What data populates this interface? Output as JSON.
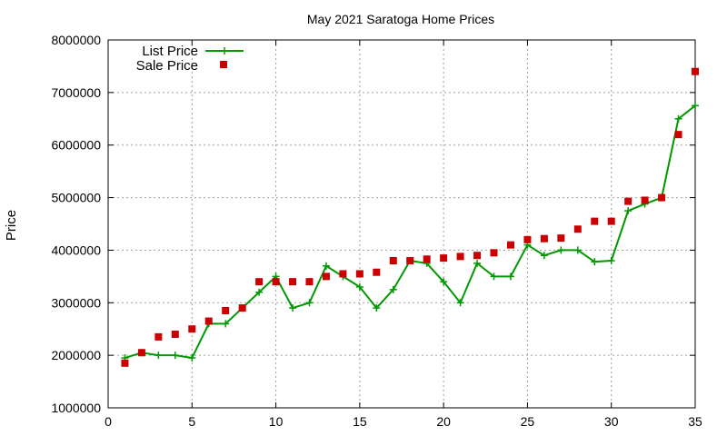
{
  "chart_data": {
    "type": "line",
    "title": "May 2021 Saratoga Home Prices",
    "xlabel": "",
    "ylabel": "Price",
    "xlim": [
      0,
      35
    ],
    "ylim": [
      1000000,
      8000000
    ],
    "xticks": [
      "0",
      "5",
      "10",
      "15",
      "20",
      "25",
      "30",
      "35"
    ],
    "yticks": [
      "1000000",
      "2000000",
      "3000000",
      "4000000",
      "5000000",
      "6000000",
      "7000000",
      "8000000"
    ],
    "grid": true,
    "legend_position": "top-left",
    "series": [
      {
        "name": "List Price",
        "style": "line-with-plus-markers",
        "color": "#009900",
        "x": [
          1,
          2,
          3,
          4,
          5,
          6,
          7,
          8,
          9,
          10,
          11,
          12,
          13,
          14,
          15,
          16,
          17,
          18,
          19,
          20,
          21,
          22,
          23,
          24,
          25,
          26,
          27,
          28,
          29,
          30,
          31,
          32,
          33,
          34,
          35
        ],
        "values": [
          1950000,
          2050000,
          2000000,
          2000000,
          1950000,
          2600000,
          2600000,
          2900000,
          3200000,
          3500000,
          2900000,
          3000000,
          3700000,
          3500000,
          3300000,
          2900000,
          3250000,
          3800000,
          3750000,
          3400000,
          3000000,
          3750000,
          3500000,
          3500000,
          4100000,
          3900000,
          4000000,
          4000000,
          3780000,
          3800000,
          4750000,
          4880000,
          5000000,
          6500000,
          6750000
        ]
      },
      {
        "name": "Sale Price",
        "style": "square-markers",
        "color": "#cc0000",
        "x": [
          1,
          2,
          3,
          4,
          5,
          6,
          7,
          8,
          9,
          10,
          11,
          12,
          13,
          14,
          15,
          16,
          17,
          18,
          19,
          20,
          21,
          22,
          23,
          24,
          25,
          26,
          27,
          28,
          29,
          30,
          31,
          32,
          33,
          34,
          35
        ],
        "values": [
          1850000,
          2050000,
          2350000,
          2400000,
          2500000,
          2650000,
          2850000,
          2900000,
          3400000,
          3400000,
          3400000,
          3400000,
          3500000,
          3550000,
          3550000,
          3580000,
          3800000,
          3800000,
          3830000,
          3850000,
          3880000,
          3900000,
          3950000,
          4100000,
          4200000,
          4220000,
          4230000,
          4400000,
          4550000,
          4550000,
          4930000,
          4950000,
          5000000,
          6200000,
          7400000
        ]
      }
    ]
  }
}
